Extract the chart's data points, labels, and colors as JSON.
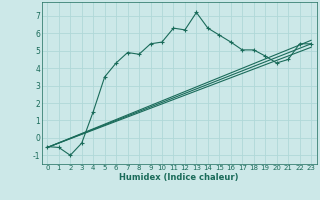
{
  "xlabel": "Humidex (Indice chaleur)",
  "background_color": "#cce8e8",
  "line_color": "#1a6b5a",
  "grid_color": "#b0d8d8",
  "xlim": [
    -0.5,
    23.5
  ],
  "ylim": [
    -1.5,
    7.8
  ],
  "xticks": [
    0,
    1,
    2,
    3,
    4,
    5,
    6,
    7,
    8,
    9,
    10,
    11,
    12,
    13,
    14,
    15,
    16,
    17,
    18,
    19,
    20,
    21,
    22,
    23
  ],
  "yticks": [
    -1,
    0,
    1,
    2,
    3,
    4,
    5,
    6,
    7
  ],
  "curve1_x": [
    0,
    1,
    2,
    3,
    4,
    5,
    6,
    7,
    8,
    9,
    10,
    11,
    12,
    13,
    14,
    15,
    16,
    17,
    18,
    19,
    20,
    21,
    22,
    23
  ],
  "curve1_y": [
    -0.5,
    -0.55,
    -1.0,
    -0.3,
    1.5,
    3.5,
    4.3,
    4.9,
    4.8,
    5.4,
    5.5,
    6.3,
    6.2,
    7.2,
    6.3,
    5.9,
    5.5,
    5.05,
    5.05,
    4.7,
    4.3,
    4.5,
    5.4,
    5.4
  ],
  "curve2_x": [
    0,
    23
  ],
  "curve2_y": [
    -0.55,
    5.4
  ],
  "curve3_x": [
    0,
    23
  ],
  "curve3_y": [
    -0.55,
    5.6
  ],
  "curve4_x": [
    0,
    23
  ],
  "curve4_y": [
    -0.55,
    5.2
  ]
}
